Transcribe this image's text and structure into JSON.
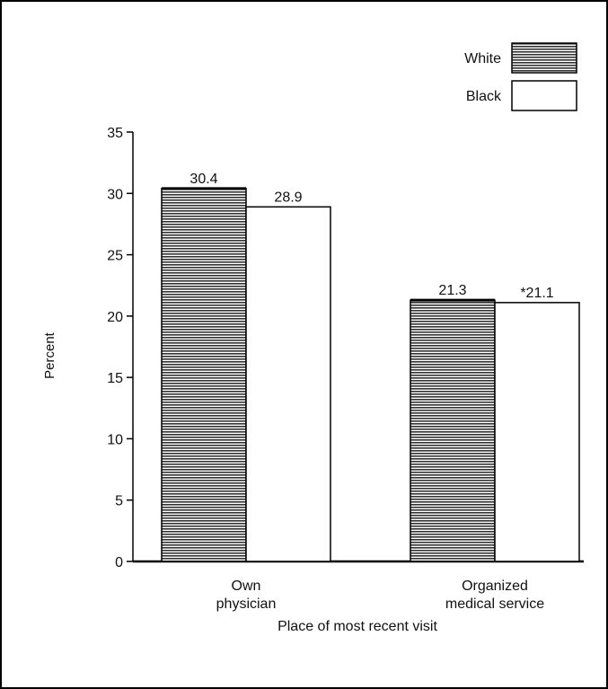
{
  "chart_data": {
    "type": "bar",
    "categories": [
      "Own\nphysician",
      "Organized\nmedical service"
    ],
    "series": [
      {
        "name": "White",
        "values": [
          30.4,
          21.3
        ],
        "value_labels": [
          "30.4",
          "21.3"
        ],
        "pattern": "horizontal-lines"
      },
      {
        "name": "Black",
        "values": [
          28.9,
          21.1
        ],
        "value_labels": [
          "28.9",
          "*21.1"
        ],
        "pattern": "none"
      }
    ],
    "xlabel": "Place of most recent visit",
    "ylabel": "Percent",
    "ylim": [
      0,
      35
    ],
    "yticks": [
      0,
      5,
      10,
      15,
      20,
      25,
      30,
      35
    ],
    "grid": false,
    "legend": "top-right"
  }
}
